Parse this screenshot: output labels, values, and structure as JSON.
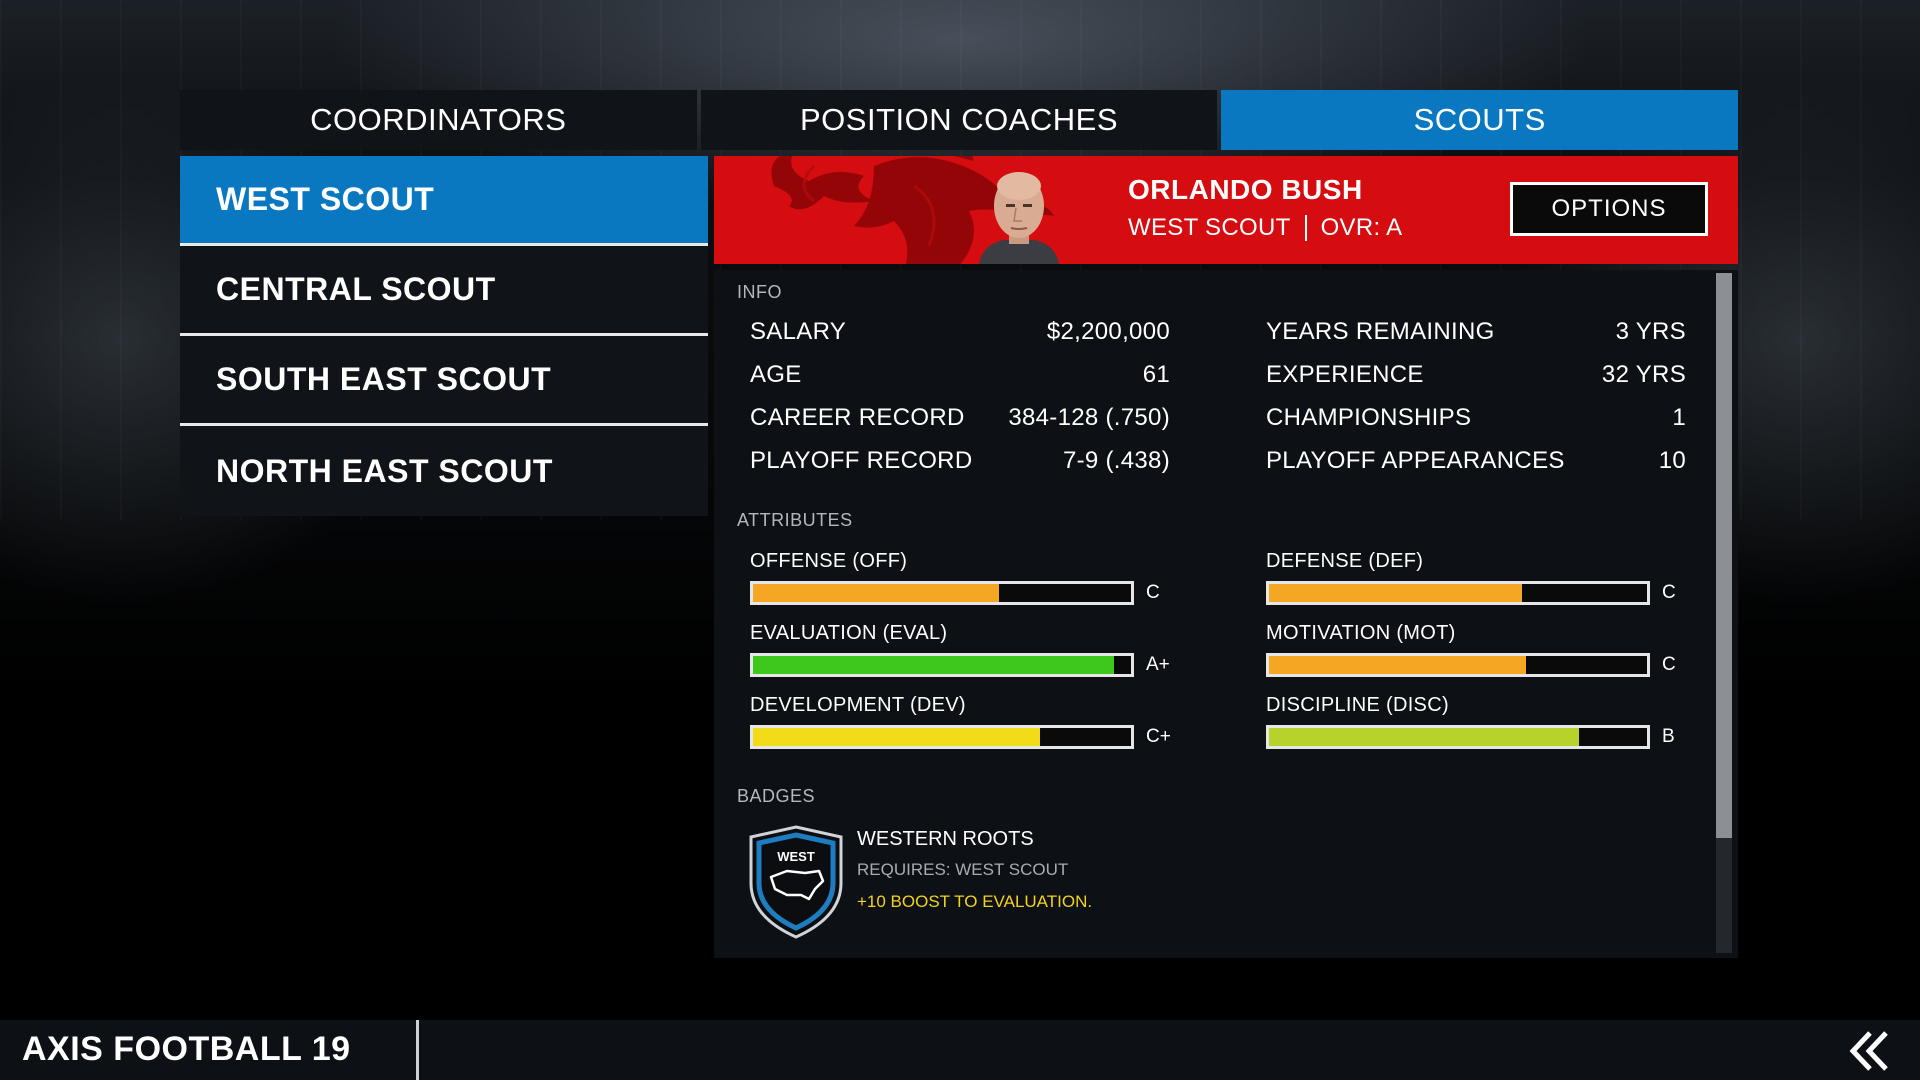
{
  "tabs": [
    {
      "label": "COORDINATORS",
      "active": false
    },
    {
      "label": "POSITION COACHES",
      "active": false
    },
    {
      "label": "SCOUTS",
      "active": true
    }
  ],
  "scouts": [
    {
      "label": "WEST SCOUT",
      "active": true
    },
    {
      "label": "CENTRAL SCOUT",
      "active": false
    },
    {
      "label": "SOUTH EAST SCOUT",
      "active": false
    },
    {
      "label": "NORTH EAST SCOUT",
      "active": false
    }
  ],
  "header": {
    "name": "ORLANDO BUSH",
    "role": "WEST SCOUT",
    "ovr": "OVR: A",
    "options_label": "OPTIONS",
    "banner_color": "#d50c10"
  },
  "info": {
    "section_label": "INFO",
    "left": [
      {
        "label": "SALARY",
        "value": "$2,200,000"
      },
      {
        "label": "AGE",
        "value": "61"
      },
      {
        "label": "CAREER RECORD",
        "value": "384-128 (.750)"
      },
      {
        "label": "PLAYOFF RECORD",
        "value": "7-9 (.438)"
      }
    ],
    "right": [
      {
        "label": "YEARS REMAINING",
        "value": "3 YRS"
      },
      {
        "label": "EXPERIENCE",
        "value": "32 YRS"
      },
      {
        "label": "CHAMPIONSHIPS",
        "value": "1"
      },
      {
        "label": "PLAYOFF APPEARANCES",
        "value": "10"
      }
    ]
  },
  "attributes": {
    "section_label": "ATTRIBUTES",
    "left": [
      {
        "label": "OFFENSE (OFF)",
        "grade": "C",
        "level": 0.65,
        "color": "#f5a623"
      },
      {
        "label": "EVALUATION (EVAL)",
        "grade": "A+",
        "level": 0.955,
        "color": "#3ec81e"
      },
      {
        "label": "DEVELOPMENT (DEV)",
        "grade": "C+",
        "level": 0.76,
        "color": "#f2dc1a"
      }
    ],
    "right": [
      {
        "label": "DEFENSE (DEF)",
        "grade": "C",
        "level": 0.67,
        "color": "#f5a623"
      },
      {
        "label": "MOTIVATION (MOT)",
        "grade": "C",
        "level": 0.68,
        "color": "#f5a623"
      },
      {
        "label": "DISCIPLINE (DISC)",
        "grade": "B",
        "level": 0.82,
        "color": "#b7d22a"
      }
    ]
  },
  "badges": {
    "section_label": "BADGES",
    "items": [
      {
        "icon": "west-shield-badge-icon",
        "icon_text": "WEST",
        "title": "WESTERN ROOTS",
        "requirement": "REQUIRES: WEST SCOUT",
        "effect": "+10 BOOST TO EVALUATION."
      }
    ]
  },
  "footer": {
    "game_title": "AXIS FOOTBALL 19",
    "back_icon": "double-chevron-left-icon"
  },
  "colors": {
    "accent_blue": "#0a78c0",
    "panel": "#0d1014",
    "grade_yellow": "#f4d21e"
  }
}
